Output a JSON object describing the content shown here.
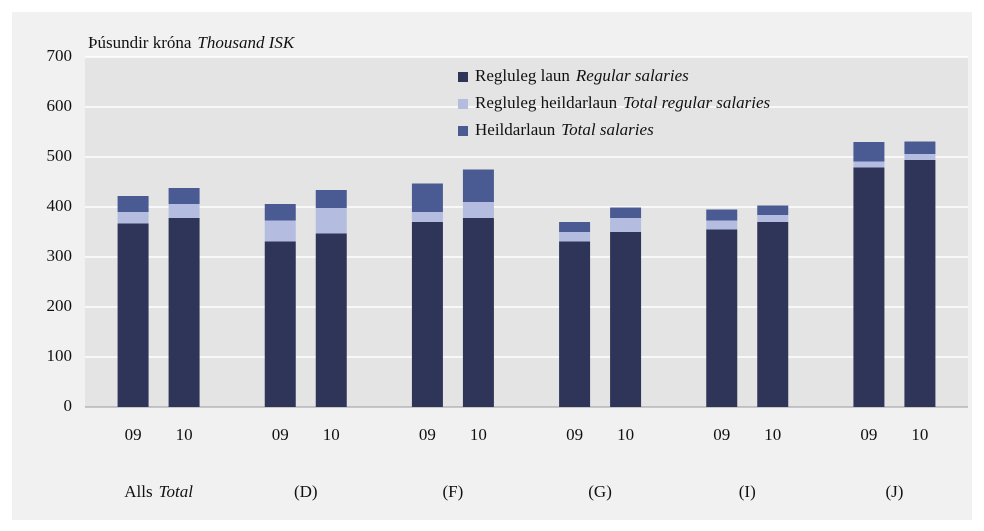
{
  "chart_data": {
    "type": "bar",
    "stacked": true,
    "ylabel": "Þúsundir króna",
    "ylabel_en": "Thousand ISK",
    "categories": [
      "09",
      "10",
      "09",
      "10",
      "09",
      "10",
      "09",
      "10",
      "09",
      "10",
      "09",
      "10"
    ],
    "groups": [
      {
        "label": "Alls",
        "label_en": "Total"
      },
      {
        "label": "(D)"
      },
      {
        "label": "(F)"
      },
      {
        "label": "(G)"
      },
      {
        "label": "(I)"
      },
      {
        "label": "(J)"
      }
    ],
    "series": [
      {
        "name": "Regluleg laun",
        "name_en": "Regular salaries",
        "color": "#2e3558",
        "values": [
          367,
          378,
          331,
          347,
          370,
          378,
          331,
          350,
          355,
          370,
          479,
          494
        ]
      },
      {
        "name": "Regluleg heildarlaun",
        "name_en": "Total regular salaries",
        "color": "#b4bde0",
        "values": [
          23,
          28,
          42,
          51,
          20,
          32,
          19,
          28,
          18,
          14,
          12,
          12
        ]
      },
      {
        "name": "Heildarlaun",
        "name_en": "Total salaries",
        "color": "#4a5a92",
        "values": [
          32,
          32,
          33,
          36,
          57,
          65,
          20,
          21,
          22,
          19,
          39,
          25
        ]
      }
    ],
    "ylim": [
      0,
      700
    ],
    "yticks": [
      0,
      100,
      200,
      300,
      400,
      500,
      600,
      700
    ],
    "grid": true
  }
}
